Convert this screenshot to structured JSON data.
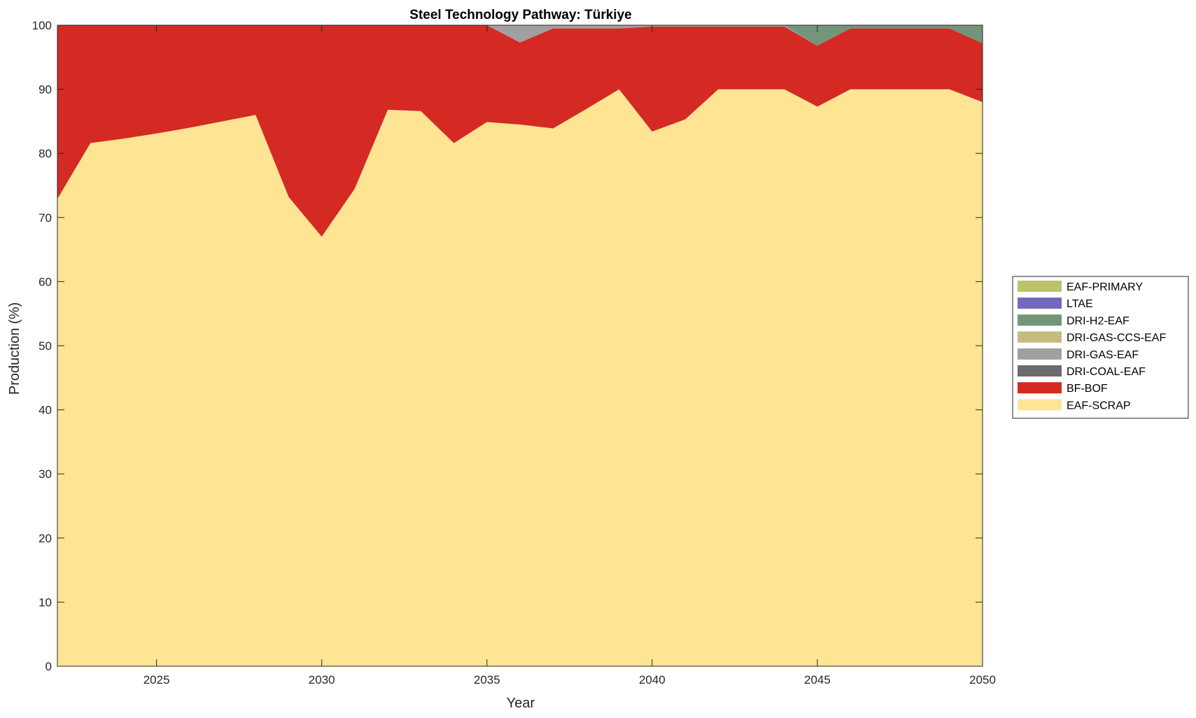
{
  "chart_data": {
    "type": "area",
    "stacked": true,
    "title": "Steel Technology Pathway: Türkiye",
    "xlabel": "Year",
    "ylabel": "Production (%)",
    "xlim": [
      2022,
      2050
    ],
    "ylim": [
      0,
      100
    ],
    "x_ticks": [
      2025,
      2030,
      2035,
      2040,
      2045,
      2050
    ],
    "y_ticks": [
      0,
      10,
      20,
      30,
      40,
      50,
      60,
      70,
      80,
      90,
      100
    ],
    "legend_position": "right",
    "x": [
      2022,
      2023,
      2024,
      2025,
      2026,
      2027,
      2028,
      2029,
      2030,
      2031,
      2032,
      2033,
      2034,
      2035,
      2036,
      2037,
      2038,
      2039,
      2040,
      2041,
      2042,
      2043,
      2044,
      2045,
      2046,
      2047,
      2048,
      2049,
      2050
    ],
    "series": [
      {
        "name": "EAF-SCRAP",
        "color": "#FFE494",
        "values": [
          72.9,
          81.6,
          82.3,
          83.1,
          84.0,
          85.0,
          86.0,
          73.2,
          67.0,
          74.5,
          86.8,
          86.6,
          81.6,
          84.9,
          84.5,
          83.9,
          86.9,
          90.0,
          83.4,
          85.3,
          90.0,
          90.0,
          90.0,
          87.3,
          90.0,
          90.0,
          90.0,
          90.0,
          88.0
        ]
      },
      {
        "name": "BF-BOF",
        "color": "#D42A23",
        "values": [
          27.1,
          18.4,
          17.7,
          16.9,
          16.0,
          15.0,
          14.0,
          26.8,
          33.0,
          25.5,
          13.2,
          13.4,
          18.4,
          15.1,
          12.8,
          15.6,
          12.6,
          9.5,
          16.4,
          14.5,
          9.8,
          9.8,
          9.8,
          9.5,
          9.5,
          9.5,
          9.5,
          9.5,
          9.2
        ]
      },
      {
        "name": "DRI-COAL-EAF",
        "color": "#6B6B6B",
        "values": [
          0,
          0,
          0,
          0,
          0,
          0,
          0,
          0,
          0,
          0,
          0,
          0,
          0,
          0,
          0,
          0,
          0,
          0,
          0,
          0,
          0,
          0,
          0,
          0,
          0,
          0,
          0,
          0,
          0
        ]
      },
      {
        "name": "DRI-GAS-EAF",
        "color": "#A0A0A0",
        "values": [
          0,
          0,
          0,
          0,
          0,
          0,
          0,
          0,
          0,
          0,
          0,
          0,
          0,
          0,
          2.7,
          0.5,
          0.5,
          0.5,
          0.2,
          0.2,
          0.2,
          0.2,
          0.2,
          0,
          0,
          0,
          0,
          0,
          0
        ]
      },
      {
        "name": "DRI-GAS-CCS-EAF",
        "color": "#C4BC7E",
        "values": [
          0,
          0,
          0,
          0,
          0,
          0,
          0,
          0,
          0,
          0,
          0,
          0,
          0,
          0,
          0,
          0,
          0,
          0,
          0,
          0,
          0,
          0,
          0,
          0,
          0,
          0,
          0,
          0,
          0
        ]
      },
      {
        "name": "DRI-H2-EAF",
        "color": "#73957A",
        "values": [
          0,
          0,
          0,
          0,
          0,
          0,
          0,
          0,
          0,
          0,
          0,
          0,
          0,
          0,
          0,
          0,
          0,
          0,
          0,
          0,
          0,
          0,
          0,
          3.2,
          0.5,
          0.5,
          0.5,
          0.5,
          2.8
        ]
      },
      {
        "name": "LTAE",
        "color": "#7468BB",
        "values": [
          0,
          0,
          0,
          0,
          0,
          0,
          0,
          0,
          0,
          0,
          0,
          0,
          0,
          0,
          0,
          0,
          0,
          0,
          0,
          0,
          0,
          0,
          0,
          0,
          0,
          0,
          0,
          0,
          0
        ]
      },
      {
        "name": "EAF-PRIMARY",
        "color": "#BCC46A",
        "values": [
          0,
          0,
          0,
          0,
          0,
          0,
          0,
          0,
          0,
          0,
          0,
          0,
          0,
          0,
          0,
          0,
          0,
          0,
          0,
          0,
          0,
          0,
          0,
          0,
          0,
          0,
          0,
          0,
          0
        ]
      }
    ],
    "legend_order": [
      "EAF-PRIMARY",
      "LTAE",
      "DRI-H2-EAF",
      "DRI-GAS-CCS-EAF",
      "DRI-GAS-EAF",
      "DRI-COAL-EAF",
      "BF-BOF",
      "EAF-SCRAP"
    ]
  }
}
